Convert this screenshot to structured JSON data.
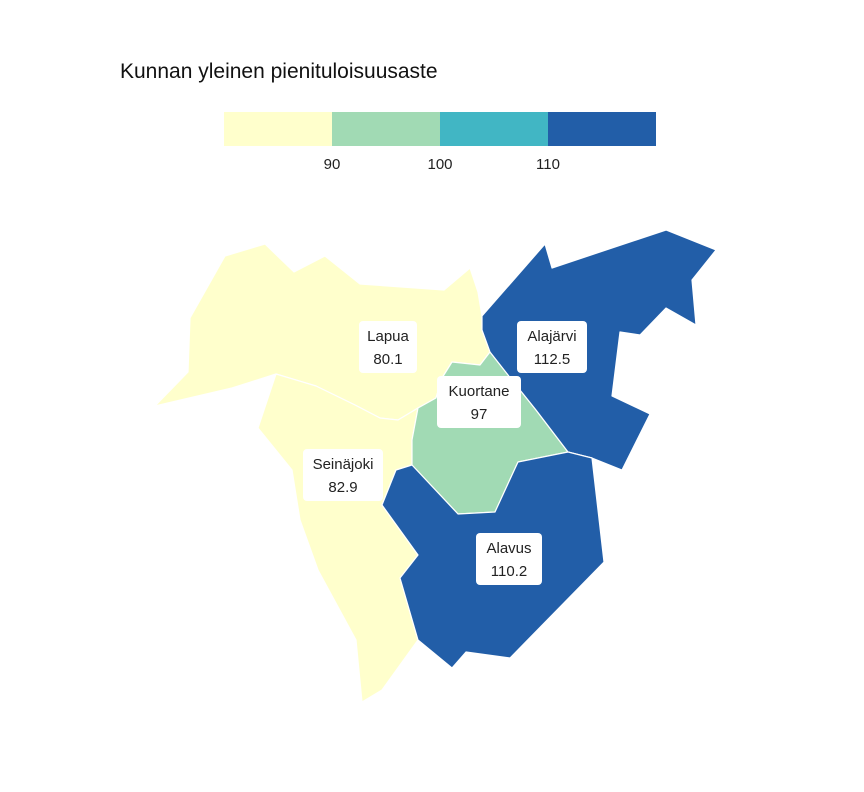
{
  "map": {
    "title": "Kunnan yleinen pienituloisuusaste",
    "legend": {
      "bins": [
        {
          "color": "#ffffcc"
        },
        {
          "color": "#a1dab4"
        },
        {
          "color": "#41b6c4"
        },
        {
          "color": "#225ea8"
        }
      ],
      "ticks": [
        "90",
        "100",
        "110"
      ]
    },
    "regions": [
      {
        "name": "Lapua",
        "value": "80.1",
        "color": "#ffffcc"
      },
      {
        "name": "Seinäjoki",
        "value": "82.9",
        "color": "#ffffcc"
      },
      {
        "name": "Kuortane",
        "value": "97",
        "color": "#a1dab4"
      },
      {
        "name": "Alajärvi",
        "value": "112.5",
        "color": "#225ea8"
      },
      {
        "name": "Alavus",
        "value": "110.2",
        "color": "#225ea8"
      }
    ]
  }
}
